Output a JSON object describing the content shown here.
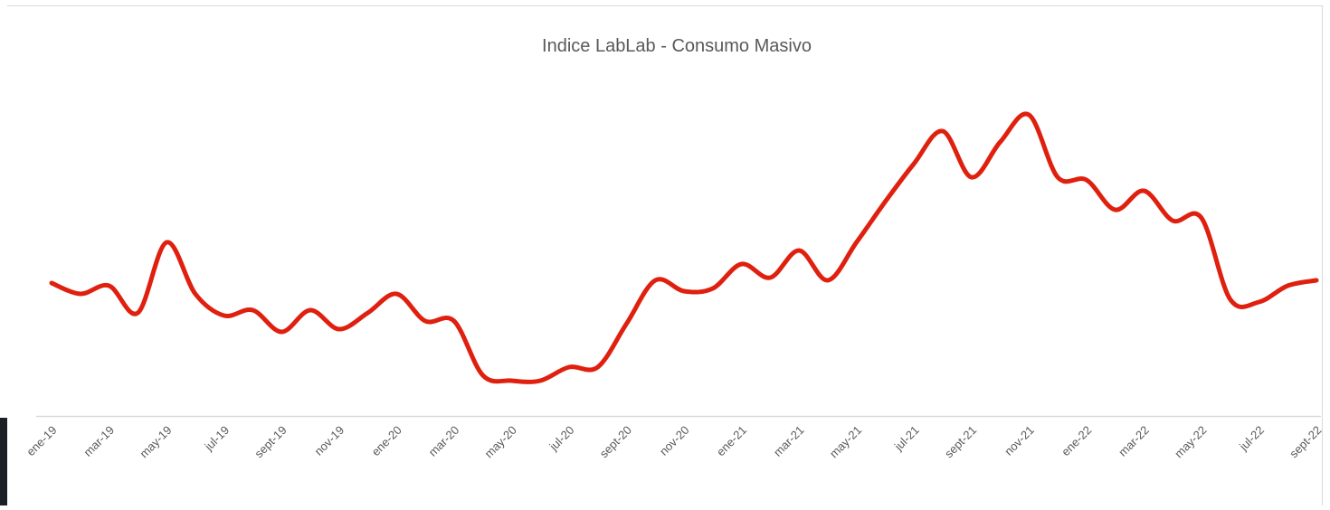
{
  "chart_data": {
    "type": "line",
    "title": "Indice LabLab - Consumo Masivo",
    "categories": [
      "ene-19",
      null,
      "mar-19",
      null,
      "may-19",
      null,
      "jul-19",
      null,
      "sept-19",
      null,
      "nov-19",
      null,
      "ene-20",
      null,
      "mar-20",
      null,
      "may-20",
      null,
      "jul-20",
      null,
      "sept-20",
      null,
      "nov-20",
      null,
      "ene-21",
      null,
      "mar-21",
      null,
      "may-21",
      null,
      "jul-21",
      null,
      "sept-21",
      null,
      "nov-21",
      null,
      "ene-22",
      null,
      "mar-22",
      null,
      "may-22",
      null,
      "jul-22",
      null,
      "sept-22"
    ],
    "series": [
      {
        "name": "Indice LabLab",
        "color": "#e0200f",
        "values": [
          49,
          45,
          48,
          38,
          64,
          45,
          37,
          39,
          31,
          39,
          32,
          38,
          45,
          35,
          35,
          15,
          13,
          13,
          18,
          18,
          34,
          50,
          46,
          47,
          56,
          51,
          61,
          50,
          64,
          79,
          93,
          105,
          88,
          101,
          111,
          88,
          87,
          76,
          83,
          72,
          73,
          43,
          42,
          48,
          50
        ]
      }
    ],
    "ylim": [
      0,
      140
    ],
    "grid": false
  }
}
